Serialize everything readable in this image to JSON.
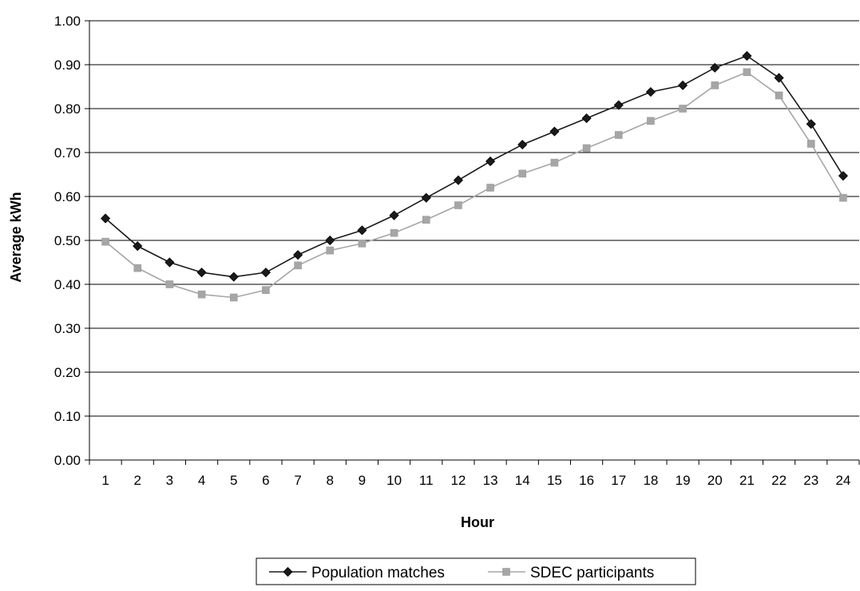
{
  "chart_data": {
    "type": "line",
    "title": "",
    "xlabel": "Hour",
    "ylabel": "Average kWh",
    "categories": [
      "1",
      "2",
      "3",
      "4",
      "5",
      "6",
      "7",
      "8",
      "9",
      "10",
      "11",
      "12",
      "13",
      "14",
      "15",
      "16",
      "17",
      "18",
      "19",
      "20",
      "21",
      "22",
      "23",
      "24"
    ],
    "ylim": [
      0,
      1.0
    ],
    "yticks": [
      "0.00",
      "0.10",
      "0.20",
      "0.30",
      "0.40",
      "0.50",
      "0.60",
      "0.70",
      "0.80",
      "0.90",
      "1.00"
    ],
    "grid": true,
    "legend_position": "bottom",
    "series": [
      {
        "name": "Population matches",
        "color": "#1a1a1a",
        "marker": "diamond",
        "values": [
          0.55,
          0.487,
          0.45,
          0.427,
          0.417,
          0.427,
          0.467,
          0.5,
          0.523,
          0.557,
          0.597,
          0.637,
          0.68,
          0.718,
          0.748,
          0.778,
          0.808,
          0.838,
          0.853,
          0.893,
          0.92,
          0.87,
          0.765,
          0.647
        ]
      },
      {
        "name": "SDEC participants",
        "color": "#a6a6a6",
        "marker": "square",
        "values": [
          0.497,
          0.437,
          0.4,
          0.377,
          0.37,
          0.387,
          0.443,
          0.477,
          0.493,
          0.517,
          0.547,
          0.58,
          0.62,
          0.652,
          0.677,
          0.71,
          0.74,
          0.772,
          0.8,
          0.853,
          0.883,
          0.83,
          0.72,
          0.597
        ]
      }
    ]
  }
}
